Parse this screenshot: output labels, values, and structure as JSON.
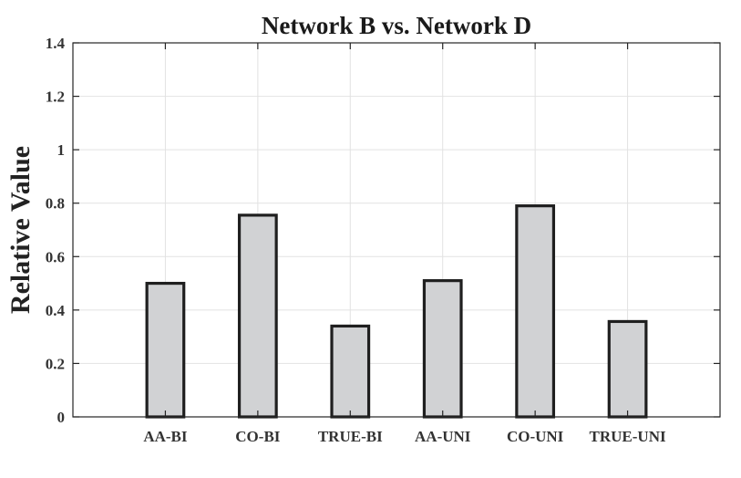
{
  "chart_data": {
    "type": "bar",
    "title": "Network B vs. Network D",
    "xlabel": "",
    "ylabel": "Relative Value",
    "categories": [
      "AA-BI",
      "CO-BI",
      "TRUE-BI",
      "AA-UNI",
      "CO-UNI",
      "TRUE-UNI"
    ],
    "values": [
      0.5,
      0.755,
      0.34,
      0.51,
      0.79,
      0.357
    ],
    "ylim": [
      0,
      1.4
    ],
    "yticks": [
      0,
      0.2,
      0.4,
      0.6,
      0.8,
      1,
      1.2,
      1.4
    ],
    "ytick_labels": [
      "0",
      "0.2",
      "0.4",
      "0.6",
      "0.8",
      "1",
      "1.2",
      "1.4"
    ],
    "xlim": [
      0,
      7
    ],
    "grid": true,
    "bar_fill": "#d1d2d4",
    "bar_edge": "#1f1f1f"
  }
}
